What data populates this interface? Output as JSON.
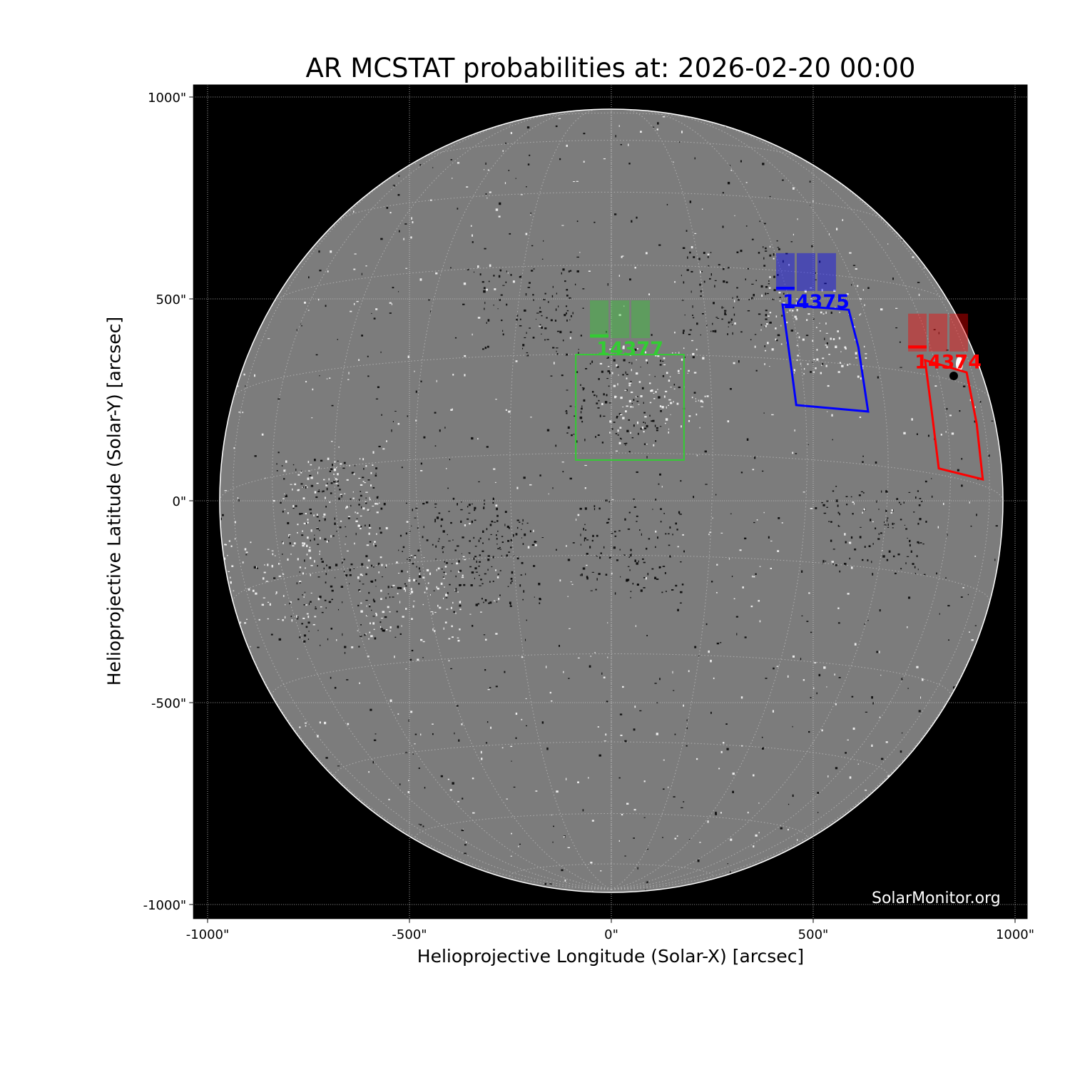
{
  "chart_data": {
    "type": "image-plot",
    "title": "AR MCSTAT probabilities at: 2026-02-20 00:00",
    "xlabel": "Helioprojective Longitude (Solar-X) [arcsec]",
    "ylabel": "Helioprojective Latitude (Solar-Y) [arcsec]",
    "xlim": [
      -1035,
      1030
    ],
    "ylim": [
      -1035,
      1030
    ],
    "xticks": [
      -1000,
      -500,
      0,
      500,
      1000
    ],
    "xtick_labels": [
      "-1000\"",
      "-500\"",
      "0\"",
      "500\"",
      "1000\""
    ],
    "yticks": [
      -1000,
      -500,
      0,
      500,
      1000
    ],
    "ytick_labels": [
      "-1000\"",
      "-500\"",
      "0\"",
      "500\"",
      "1000\""
    ],
    "grid": true,
    "solar_radius_arcsec": 970,
    "watermark": "SolarMonitor.org",
    "regions": [
      {
        "number": "14377",
        "color": "#33cc33",
        "label_at": [
          46,
          378
        ],
        "outline": [
          [
            -88,
            101
          ],
          [
            180,
            101
          ],
          [
            180,
            362
          ],
          [
            -88,
            362
          ]
        ],
        "probabilities": [
          0.1,
          0,
          0
        ]
      },
      {
        "number": "14375",
        "color": "#0000ff",
        "label_at": [
          507,
          495
        ],
        "outline": [
          [
            424,
            486
          ],
          [
            588,
            473
          ],
          [
            612,
            380
          ],
          [
            636,
            221
          ],
          [
            458,
            237
          ],
          [
            447,
            320
          ]
        ],
        "probabilities": [
          0.11,
          0,
          0
        ]
      },
      {
        "number": "14374",
        "color": "#ff0000",
        "label_at": [
          834,
          345
        ],
        "outline": [
          [
            777,
            348
          ],
          [
            880,
            318
          ],
          [
            905,
            190
          ],
          [
            920,
            53
          ],
          [
            811,
            80
          ],
          [
            795,
            210
          ]
        ],
        "probabilities": [
          0.16,
          0,
          0
        ]
      }
    ]
  }
}
